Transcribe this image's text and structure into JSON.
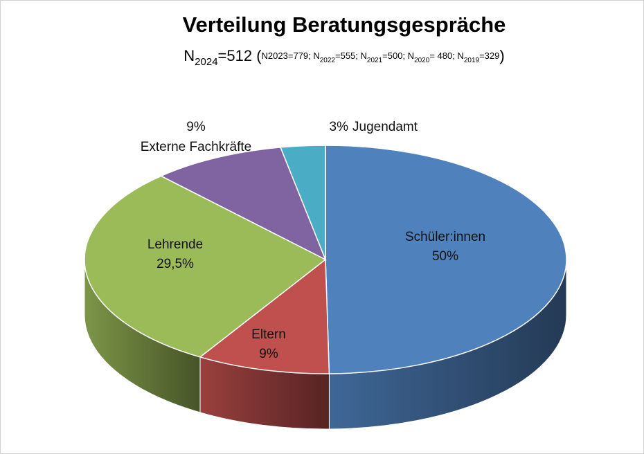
{
  "chart_data": {
    "type": "pie3d",
    "title": "Verteilung Beratungsgespräche",
    "subtitle_parts": [
      {
        "text": "N"
      },
      {
        "text": "2024",
        "sub": true
      },
      {
        "text": "=512 ("
      },
      {
        "text": "N2023=779; N",
        "small": true
      },
      {
        "text": "2022",
        "small": true,
        "sub": true
      },
      {
        "text": "=555; N",
        "small": true
      },
      {
        "text": "2021",
        "small": true,
        "sub": true
      },
      {
        "text": "=500; N",
        "small": true
      },
      {
        "text": "2020",
        "small": true,
        "sub": true
      },
      {
        "text": "= 480; N",
        "small": true
      },
      {
        "text": "2019",
        "small": true,
        "sub": true
      },
      {
        "text": "=329",
        "small": true
      },
      {
        "text": ")"
      }
    ],
    "categories": [
      "Schüler:innen",
      "Eltern",
      "Lehrende",
      "Externe Fachkräfte",
      "Jugendamt"
    ],
    "values": [
      50,
      9,
      29.5,
      9,
      3
    ],
    "value_labels": [
      "50%",
      "9%",
      "29,5%",
      "9%",
      "3%"
    ],
    "colors": [
      "#4f81bd",
      "#c0504d",
      "#9bbb59",
      "#8064a2",
      "#4bacc6"
    ]
  }
}
